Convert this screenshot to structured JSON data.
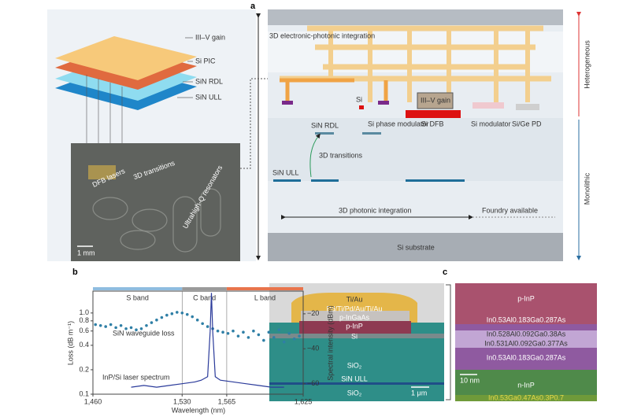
{
  "panels": {
    "a": "a",
    "b": "b",
    "c": "c"
  },
  "panel_a": {
    "layers": [
      "III–V gain",
      "Si PIC",
      "SiN RDL",
      "SiN ULL"
    ],
    "photo": {
      "lasers": "DFB lasers",
      "transitions": "3D transitions",
      "resonators": "Ultrahigh-Q resonators",
      "scale": "1 mm"
    },
    "cross_section": {
      "electronic": "3D electronic-photonic integration",
      "si": "Si",
      "gain": "III–V gain",
      "phase": "Si phase modulator",
      "dfb": "Si DFB",
      "modulator": "Si modulator",
      "pd": "Si/Ge PD",
      "rdl": "SiN RDL",
      "transitions": "3D transitions",
      "ull": "SiN ULL",
      "photonic": "3D photonic integration",
      "foundry": "Foundry available",
      "substrate": "Si substrate"
    },
    "sides": {
      "top": "Heterogeneous",
      "bottom": "Monolithic"
    }
  },
  "chart_data": {
    "type": "scatter",
    "xlabel": "Wavelength (nm)",
    "ylabel": "Loss (dB m⁻¹)",
    "y2label": "Spectral intensity (dBm)",
    "xlim": [
      1460,
      1625
    ],
    "xticks": [
      {
        "value": 1460,
        "label": "1,460"
      },
      {
        "value": 1530,
        "label": "1,530"
      },
      {
        "value": 1565,
        "label": "1,565"
      },
      {
        "value": 1625,
        "label": "1,625"
      }
    ],
    "ylim": [
      0.1,
      1.86
    ],
    "log_y": true,
    "yticks": [
      0.1,
      0.2,
      0.4,
      0.6,
      0.8,
      {
        "value": 1,
        "label": "1.0"
      }
    ],
    "y2lim": [
      -66,
      -7
    ],
    "y2ticks": [
      {
        "value": -60,
        "label": "−60"
      },
      {
        "value": -40,
        "label": "−40"
      },
      {
        "value": -20,
        "label": "−20"
      }
    ],
    "bands": [
      {
        "name": "S band",
        "range": [
          1460,
          1530
        ],
        "color": "#8fbde0"
      },
      {
        "name": "C band",
        "range": [
          1530,
          1565
        ],
        "color": "#9a9a9a"
      },
      {
        "name": "L band",
        "range": [
          1565,
          1625
        ],
        "color": "#e8744c"
      }
    ],
    "series": [
      {
        "name": "SiN waveguide loss",
        "color": "#2f7fa6",
        "x": [
          1462,
          1466,
          1470,
          1474,
          1478,
          1482,
          1486,
          1490,
          1494,
          1498,
          1502,
          1506,
          1510,
          1514,
          1518,
          1522,
          1526,
          1530,
          1534,
          1538,
          1542,
          1546,
          1550,
          1554,
          1558,
          1562,
          1566,
          1570,
          1574,
          1578,
          1582,
          1586,
          1590,
          1594,
          1598,
          1602,
          1606,
          1610,
          1614,
          1618,
          1622
        ],
        "values": [
          0.72,
          0.7,
          0.68,
          0.72,
          0.66,
          0.7,
          0.64,
          0.66,
          0.62,
          0.64,
          0.7,
          0.76,
          0.82,
          0.88,
          0.94,
          0.98,
          1.02,
          1.0,
          0.96,
          0.9,
          0.82,
          0.74,
          0.68,
          0.64,
          0.6,
          0.58,
          0.56,
          0.6,
          0.52,
          0.58,
          0.5,
          0.6,
          0.54,
          0.46,
          0.58,
          0.5,
          0.62,
          0.44,
          0.56,
          0.48,
          0.52
        ]
      },
      {
        "name": "InP/Si laser spectrum",
        "color": "#2a3a9a",
        "axis": "y2",
        "x": [
          1490,
          1500,
          1510,
          1520,
          1530,
          1540,
          1545,
          1550,
          1552,
          1553,
          1554,
          1556,
          1560,
          1570,
          1580,
          1590,
          1600,
          1610
        ],
        "values": [
          -62,
          -61,
          -62,
          -61,
          -60,
          -59,
          -58,
          -56,
          -30,
          -8,
          -30,
          -56,
          -58,
          -59,
          -60,
          -61,
          -62,
          -62
        ]
      }
    ]
  },
  "panel_c": {
    "left": {
      "tiau": "Ti/Au",
      "contact": "Pd/Ti/Pd/Au/Ti/Au",
      "ingaas": "p-InGaAs",
      "pinp": "p-InP",
      "si": "Si",
      "sio2_top": "SiO₂",
      "ull": "SiN ULL",
      "sio2_bottom": "SiO₂",
      "scale": "1 μm"
    },
    "right": {
      "pinp": "p-InP",
      "l1": "In0.53Al0.183Ga0.287As",
      "l2": "In0.528Al0.092Ga0.38As",
      "l3": "In0.531Al0.092Ga0.377As",
      "l4": "In0.53Al0.183Ga0.287As",
      "scale": "10 nm",
      "ninp": "n-InP",
      "l5": "In0.53Ga0.47As0.3P0.7"
    }
  }
}
